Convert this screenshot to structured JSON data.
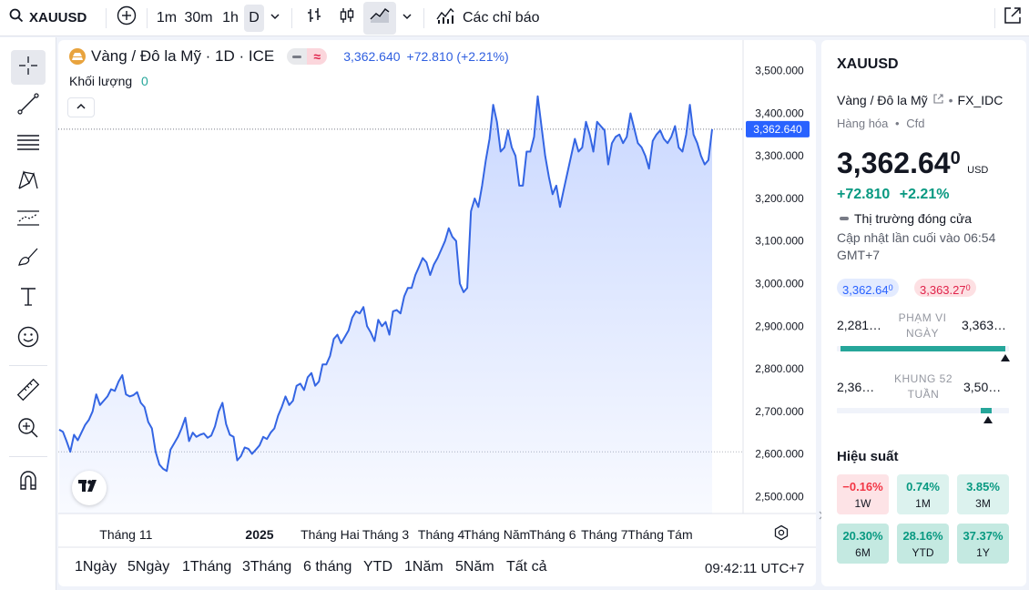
{
  "topbar": {
    "symbol": "XAUUSD",
    "intervals": [
      "1m",
      "30m",
      "1h",
      "D"
    ],
    "indicators_label": "Các chỉ báo"
  },
  "legend": {
    "title": "Vàng / Đô la Mỹ · 1D · ICE",
    "price": "3,362.640",
    "change": "+72.810 (+2.21%)",
    "volume_label": "Khối lượng",
    "volume_value": "0",
    "badge": "≈"
  },
  "chart_data": {
    "type": "area",
    "title": "Vàng / Đô la Mỹ · 1D · ICE",
    "ylim": [
      2475,
      3525
    ],
    "yticks": [
      "3,500.000",
      "3,400.000",
      "3,300.000",
      "3,200.000",
      "3,100.000",
      "3,000.000",
      "2,900.000",
      "2,800.000",
      "2,700.000",
      "2,600.000",
      "2,500.000"
    ],
    "ytick_values": [
      3500,
      3400,
      3300,
      3200,
      3100,
      3000,
      2900,
      2800,
      2700,
      2600,
      2500
    ],
    "last_price_label": "3,362.640",
    "last_price": 3362.64,
    "low_line": 2605,
    "xticks": [
      "Tháng 11",
      "2025",
      "Tháng Hai",
      "Tháng 3",
      "Tháng 4",
      "Tháng Năm",
      "Tháng 6",
      "Tháng 7",
      "Tháng Tám"
    ],
    "xtick_index": [
      18,
      54,
      73,
      88,
      103,
      118,
      133,
      147,
      162
    ],
    "series": [
      {
        "values": [
          2657,
          2652,
          2630,
          2605,
          2645,
          2632,
          2650,
          2668,
          2680,
          2700,
          2740,
          2715,
          2725,
          2735,
          2752,
          2748,
          2770,
          2785,
          2740,
          2735,
          2738,
          2745,
          2720,
          2710,
          2675,
          2660,
          2605,
          2575,
          2565,
          2560,
          2610,
          2625,
          2640,
          2660,
          2685,
          2630,
          2650,
          2640,
          2645,
          2648,
          2638,
          2643,
          2665,
          2700,
          2720,
          2670,
          2645,
          2640,
          2585,
          2595,
          2615,
          2612,
          2600,
          2610,
          2620,
          2640,
          2635,
          2650,
          2660,
          2690,
          2710,
          2735,
          2715,
          2725,
          2760,
          2765,
          2750,
          2780,
          2790,
          2760,
          2770,
          2810,
          2810,
          2830,
          2870,
          2880,
          2860,
          2875,
          2890,
          2920,
          2935,
          2930,
          2945,
          2900,
          2885,
          2865,
          2915,
          2900,
          2910,
          2880,
          2935,
          2938,
          2930,
          2970,
          2990,
          2990,
          3020,
          3040,
          3060,
          3050,
          3020,
          3045,
          3060,
          3080,
          3100,
          3130,
          3110,
          3100,
          3000,
          2980,
          2990,
          3170,
          3200,
          3180,
          3230,
          3290,
          3340,
          3420,
          3380,
          3310,
          3320,
          3360,
          3320,
          3300,
          3230,
          3230,
          3310,
          3310,
          3345,
          3440,
          3370,
          3300,
          3250,
          3210,
          3230,
          3180,
          3220,
          3260,
          3300,
          3340,
          3310,
          3320,
          3380,
          3350,
          3310,
          3380,
          3370,
          3360,
          3280,
          3330,
          3345,
          3350,
          3330,
          3345,
          3400,
          3365,
          3330,
          3320,
          3300,
          3270,
          3335,
          3350,
          3360,
          3340,
          3330,
          3345,
          3370,
          3320,
          3310,
          3350,
          3420,
          3350,
          3330,
          3300,
          3280,
          3290,
          3362.64
        ]
      }
    ]
  },
  "chart_bottom": {
    "ranges": [
      "1Ngày",
      "5Ngày",
      "1Tháng",
      "3Tháng",
      "6 tháng",
      "YTD",
      "1Năm",
      "5Năm",
      "Tất cả"
    ],
    "time": "09:42:11 UTC+7"
  },
  "panel": {
    "symbol": "XAUUSD",
    "name": "Vàng / Đô la Mỹ",
    "source": "FX_IDC",
    "category": "Hàng hóa",
    "type": "Cfd",
    "price_main": "3,362.64",
    "price_small": "0",
    "currency": "USD",
    "change_abs": "+72.810",
    "change_pct": "+2.21%",
    "market_status": "Thị trường đóng cửa",
    "updated": "Cập nhật lần cuối vào 06:54 GMT+7",
    "bid_main": "3,362.64",
    "bid_small": "0",
    "ask_main": "3,363.27",
    "ask_small": "0",
    "day_low": "2,281…",
    "day_label": "PHẠM VI NGÀY",
    "day_high": "3,363…",
    "day_fill": 0.98,
    "week_low": "2,36…",
    "week_label": "KHUNG 52 TUẦN",
    "week_high": "3,50…",
    "week_fill": 0.88,
    "perf_title": "Hiệu suất",
    "perf": [
      {
        "value": "−0.16%",
        "label": "1W",
        "tone": "neg"
      },
      {
        "value": "0.74%",
        "label": "1M",
        "tone": "pos"
      },
      {
        "value": "3.85%",
        "label": "3M",
        "tone": "pos"
      },
      {
        "value": "20.30%",
        "label": "6M",
        "tone": "pos2"
      },
      {
        "value": "28.16%",
        "label": "YTD",
        "tone": "pos2"
      },
      {
        "value": "37.37%",
        "label": "1Y",
        "tone": "pos2"
      }
    ]
  },
  "colors": {
    "line": "#3465e3",
    "positive": "#089981",
    "negative": "#f23645",
    "last_label_bg": "#2962ff"
  }
}
